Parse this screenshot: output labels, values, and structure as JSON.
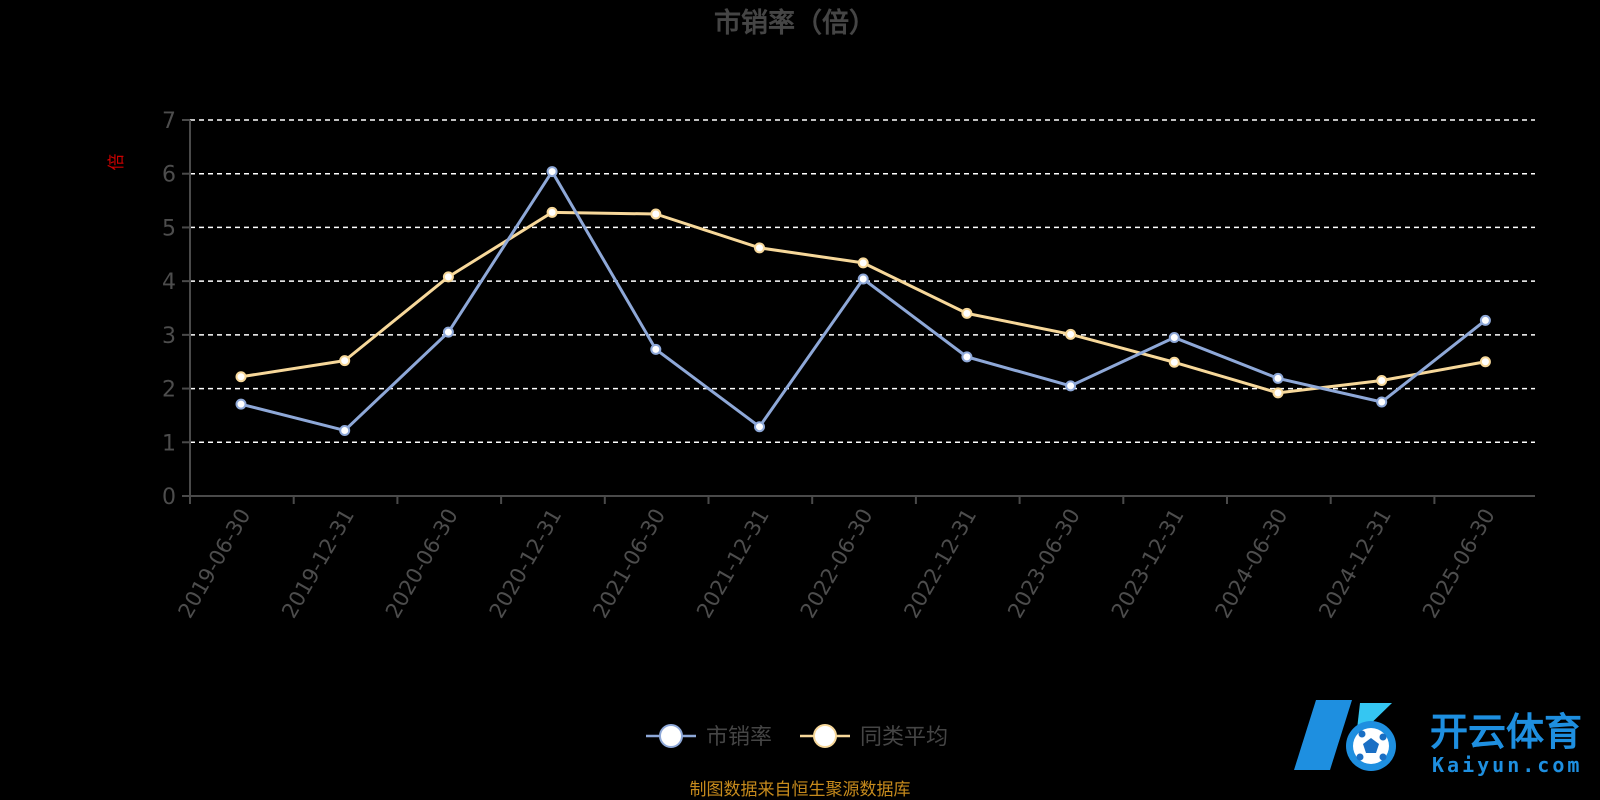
{
  "colors": {
    "background": "#000000",
    "title": "#454545",
    "axis": "#4a4a4a",
    "tick_label": "#4d4d4d",
    "grid": "#ffffff",
    "y_unit": "#cc0000",
    "legend_text": "#454545",
    "source_note": "#c68a1c",
    "watermark_blue": "#1e8fe0",
    "watermark_light": "#35c6f2"
  },
  "chart_data": {
    "type": "line",
    "title": "市销率（倍）",
    "ylabel": "倍",
    "xlabel": "",
    "ylim": [
      0,
      7
    ],
    "yticks": [
      0,
      1,
      2,
      3,
      4,
      5,
      6,
      7
    ],
    "grid": true,
    "grid_style": "dashed",
    "legend_position": "bottom-center",
    "categories": [
      "2019-06-30",
      "2019-12-31",
      "2020-06-30",
      "2020-12-31",
      "2021-06-30",
      "2021-12-31",
      "2022-06-30",
      "2022-12-31",
      "2023-06-30",
      "2023-12-31",
      "2024-06-30",
      "2024-12-31",
      "2025-06-30"
    ],
    "series": [
      {
        "name": "市销率",
        "color": "#8ea8d8",
        "values": [
          1.71,
          1.22,
          3.05,
          6.04,
          2.73,
          1.29,
          4.04,
          2.59,
          2.05,
          2.95,
          2.19,
          1.75,
          3.27
        ]
      },
      {
        "name": "同类平均",
        "color": "#f7d89a",
        "values": [
          2.22,
          2.52,
          4.08,
          5.28,
          5.25,
          4.62,
          4.34,
          3.4,
          3.01,
          2.49,
          1.92,
          2.15,
          2.5
        ]
      }
    ]
  },
  "source_note": "制图数据来自恒生聚源数据库",
  "watermark": {
    "brand_cn": "开云体育",
    "brand_en": "Kaiyun.com",
    "logo_icon": "soccer-ball-k-logo"
  }
}
